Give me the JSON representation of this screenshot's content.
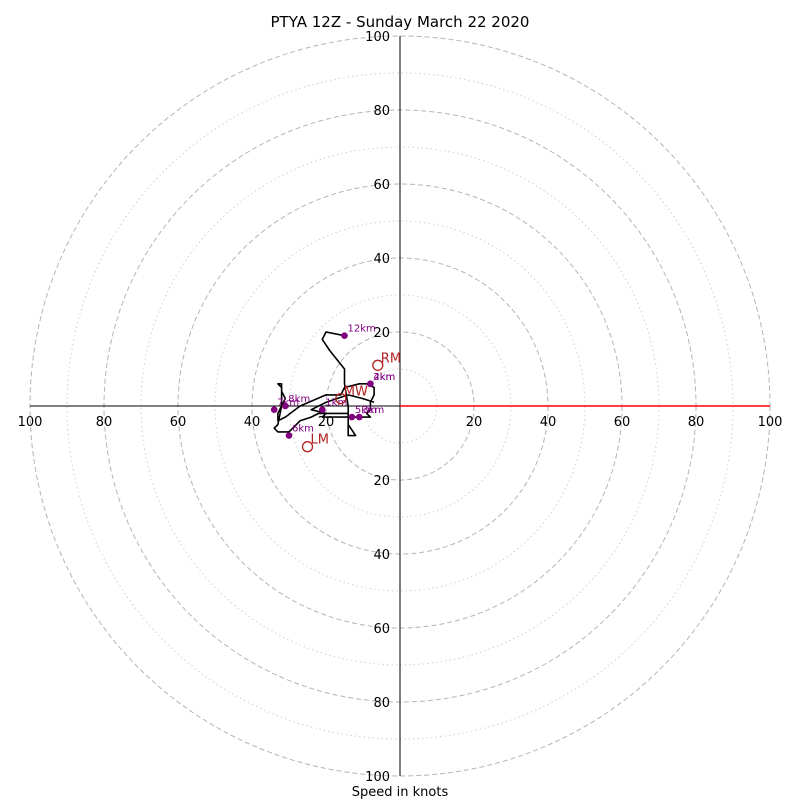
{
  "chart_data": {
    "type": "hodograph",
    "title": "PTYA 12Z - Sunday March 22 2020",
    "xlabel": "Speed in knots",
    "max_speed": 100,
    "rings_dashed": [
      20,
      40,
      60,
      80,
      100
    ],
    "rings_dotted": [
      10,
      30,
      50,
      70,
      90
    ],
    "tick_labels": [
      "20",
      "40",
      "60",
      "80",
      "100"
    ],
    "trace": [
      [
        -7,
        1
      ],
      [
        -10,
        2
      ],
      [
        -14,
        3
      ],
      [
        -20,
        1
      ],
      [
        -22,
        0
      ],
      [
        -24,
        -1
      ],
      [
        -20,
        -2
      ],
      [
        -21,
        -3
      ],
      [
        -15,
        -3
      ],
      [
        -10,
        -3
      ],
      [
        -9,
        -3
      ],
      [
        -8,
        -3
      ],
      [
        -9,
        -2
      ],
      [
        -8,
        -1
      ],
      [
        -8,
        1
      ],
      [
        -7,
        3
      ],
      [
        -7,
        5
      ],
      [
        -9,
        6
      ],
      [
        -11,
        6
      ],
      [
        -15,
        5
      ],
      [
        -16,
        3
      ],
      [
        -20,
        3
      ],
      [
        -27,
        0
      ],
      [
        -31,
        -3
      ],
      [
        -33,
        -4
      ],
      [
        -33,
        -2
      ],
      [
        -32,
        0
      ],
      [
        -31,
        2
      ],
      [
        -32,
        4
      ],
      [
        -32,
        6
      ],
      [
        -33,
        6
      ],
      [
        -32,
        5
      ],
      [
        -32,
        0
      ],
      [
        -33,
        -5
      ],
      [
        -34,
        -6
      ],
      [
        -33,
        -7
      ],
      [
        -30,
        -7
      ],
      [
        -27,
        -4
      ],
      [
        -24,
        -3
      ],
      [
        -22,
        -2
      ],
      [
        -20,
        -2
      ],
      [
        -14,
        -2
      ],
      [
        -14,
        -5
      ],
      [
        -12,
        -8
      ],
      [
        -14,
        -8
      ],
      [
        -14,
        0
      ],
      [
        -15,
        6
      ],
      [
        -15,
        10
      ],
      [
        -19,
        15
      ],
      [
        -21,
        18
      ],
      [
        -20,
        20
      ],
      [
        -15,
        19
      ]
    ],
    "height_markers": [
      {
        "label": "1km",
        "u": -21,
        "v": -1
      },
      {
        "label": "2km",
        "u": -8,
        "v": 6
      },
      {
        "label": "3km",
        "u": -11,
        "v": -3
      },
      {
        "label": "4km",
        "u": -8,
        "v": 6
      },
      {
        "label": "5km",
        "u": -13,
        "v": -3
      },
      {
        "label": "6km",
        "u": -30,
        "v": -8
      },
      {
        "label": "7km",
        "u": -34,
        "v": -1
      },
      {
        "label": "8km",
        "u": -31,
        "v": 0
      },
      {
        "label": "12km",
        "u": -15,
        "v": 19
      }
    ],
    "storm_motion": [
      {
        "label": "RM",
        "u": -6,
        "v": 11
      },
      {
        "label": "MW",
        "u": -16,
        "v": 2
      },
      {
        "label": "LM",
        "u": -25,
        "v": -11
      }
    ],
    "trace_color": "#000000",
    "marker_color": "#800080",
    "motion_color": "#b22222",
    "axis_accent_color": "#ff0000"
  }
}
